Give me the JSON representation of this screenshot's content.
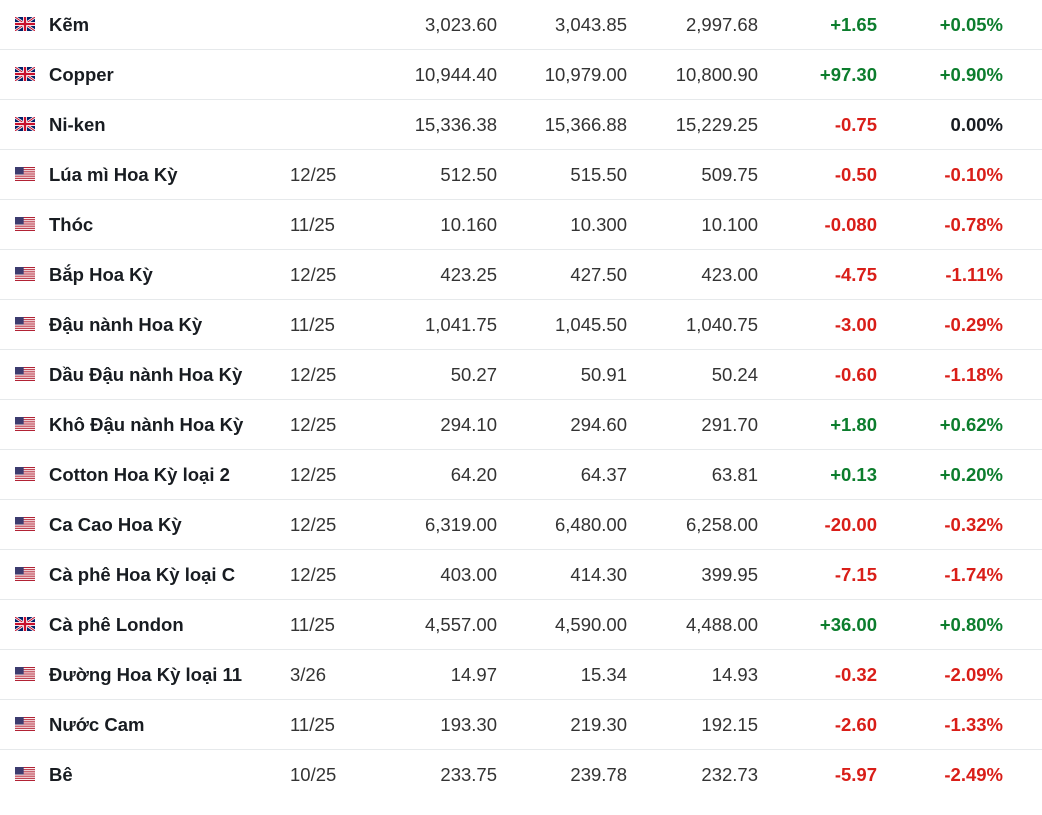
{
  "colors": {
    "positive": "#0c7d2d",
    "negative": "#d91e18",
    "neutral": "#181c21"
  },
  "rows": [
    {
      "flag": "uk-flag-icon",
      "name": "Kẽm",
      "month": "",
      "last": "3,023.60",
      "high": "3,043.85",
      "low": "2,997.68",
      "change": "+1.65",
      "pct": "+0.05%",
      "dir": "pos",
      "pct_dir": "pos"
    },
    {
      "flag": "uk-flag-icon",
      "name": "Copper",
      "month": "",
      "last": "10,944.40",
      "high": "10,979.00",
      "low": "10,800.90",
      "change": "+97.30",
      "pct": "+0.90%",
      "dir": "pos",
      "pct_dir": "pos"
    },
    {
      "flag": "uk-flag-icon",
      "name": "Ni-ken",
      "month": "",
      "last": "15,336.38",
      "high": "15,366.88",
      "low": "15,229.25",
      "change": "-0.75",
      "pct": "0.00%",
      "dir": "neg",
      "pct_dir": "neu"
    },
    {
      "flag": "us-flag-icon",
      "name": "Lúa mì Hoa Kỳ",
      "month": "12/25",
      "last": "512.50",
      "high": "515.50",
      "low": "509.75",
      "change": "-0.50",
      "pct": "-0.10%",
      "dir": "neg",
      "pct_dir": "neg"
    },
    {
      "flag": "us-flag-icon",
      "name": "Thóc",
      "month": "11/25",
      "last": "10.160",
      "high": "10.300",
      "low": "10.100",
      "change": "-0.080",
      "pct": "-0.78%",
      "dir": "neg",
      "pct_dir": "neg"
    },
    {
      "flag": "us-flag-icon",
      "name": "Bắp Hoa Kỳ",
      "month": "12/25",
      "last": "423.25",
      "high": "427.50",
      "low": "423.00",
      "change": "-4.75",
      "pct": "-1.11%",
      "dir": "neg",
      "pct_dir": "neg"
    },
    {
      "flag": "us-flag-icon",
      "name": "Đậu nành Hoa Kỳ",
      "month": "11/25",
      "last": "1,041.75",
      "high": "1,045.50",
      "low": "1,040.75",
      "change": "-3.00",
      "pct": "-0.29%",
      "dir": "neg",
      "pct_dir": "neg"
    },
    {
      "flag": "us-flag-icon",
      "name": "Dầu Đậu nành Hoa Kỳ",
      "month": "12/25",
      "last": "50.27",
      "high": "50.91",
      "low": "50.24",
      "change": "-0.60",
      "pct": "-1.18%",
      "dir": "neg",
      "pct_dir": "neg"
    },
    {
      "flag": "us-flag-icon",
      "name": "Khô Đậu nành Hoa Kỳ",
      "month": "12/25",
      "last": "294.10",
      "high": "294.60",
      "low": "291.70",
      "change": "+1.80",
      "pct": "+0.62%",
      "dir": "pos",
      "pct_dir": "pos"
    },
    {
      "flag": "us-flag-icon",
      "name": "Cotton Hoa Kỳ loại 2",
      "month": "12/25",
      "last": "64.20",
      "high": "64.37",
      "low": "63.81",
      "change": "+0.13",
      "pct": "+0.20%",
      "dir": "pos",
      "pct_dir": "pos"
    },
    {
      "flag": "us-flag-icon",
      "name": "Ca Cao Hoa Kỳ",
      "month": "12/25",
      "last": "6,319.00",
      "high": "6,480.00",
      "low": "6,258.00",
      "change": "-20.00",
      "pct": "-0.32%",
      "dir": "neg",
      "pct_dir": "neg"
    },
    {
      "flag": "us-flag-icon",
      "name": "Cà phê Hoa Kỳ loại C",
      "month": "12/25",
      "last": "403.00",
      "high": "414.30",
      "low": "399.95",
      "change": "-7.15",
      "pct": "-1.74%",
      "dir": "neg",
      "pct_dir": "neg"
    },
    {
      "flag": "uk-flag-icon",
      "name": "Cà phê London",
      "month": "11/25",
      "last": "4,557.00",
      "high": "4,590.00",
      "low": "4,488.00",
      "change": "+36.00",
      "pct": "+0.80%",
      "dir": "pos",
      "pct_dir": "pos"
    },
    {
      "flag": "us-flag-icon",
      "name": "Đường Hoa Kỳ loại 11",
      "month": "3/26",
      "last": "14.97",
      "high": "15.34",
      "low": "14.93",
      "change": "-0.32",
      "pct": "-2.09%",
      "dir": "neg",
      "pct_dir": "neg"
    },
    {
      "flag": "us-flag-icon",
      "name": "Nước Cam",
      "month": "11/25",
      "last": "193.30",
      "high": "219.30",
      "low": "192.15",
      "change": "-2.60",
      "pct": "-1.33%",
      "dir": "neg",
      "pct_dir": "neg"
    },
    {
      "flag": "us-flag-icon",
      "name": "Bê",
      "month": "10/25",
      "last": "233.75",
      "high": "239.78",
      "low": "232.73",
      "change": "-5.97",
      "pct": "-2.49%",
      "dir": "neg",
      "pct_dir": "neg"
    }
  ]
}
